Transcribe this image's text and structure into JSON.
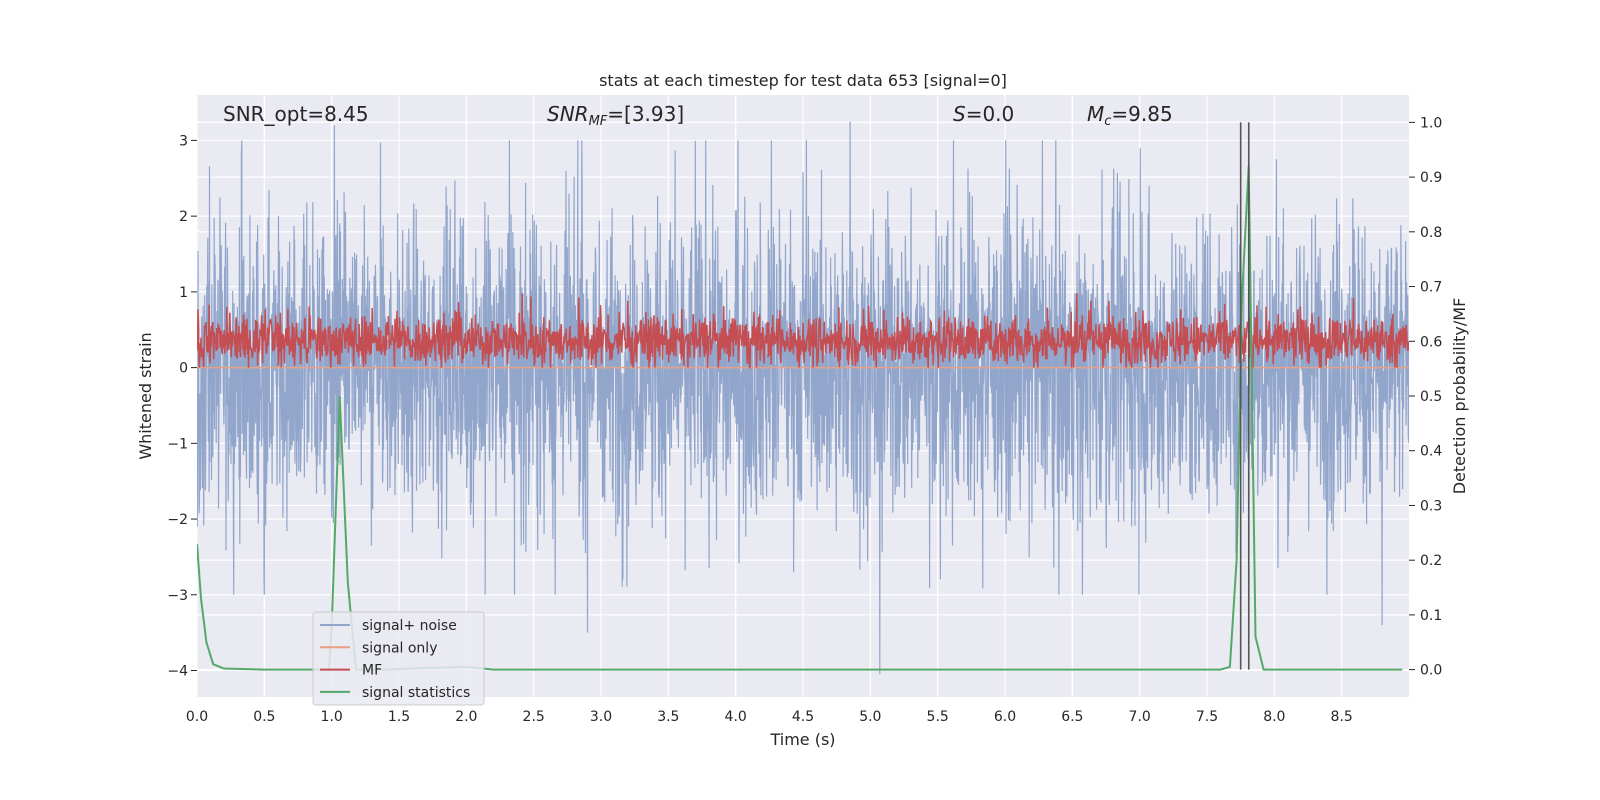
{
  "chart_data": {
    "type": "line",
    "title": "stats at each timestep for test data 653 [signal=0]",
    "xlabel": "Time (s)",
    "ylabel": "Whitened strain",
    "ylabel_right": "Detection probability/MF",
    "xlim": [
      0.0,
      9.0
    ],
    "ylim": [
      -4.35,
      3.6
    ],
    "ylim_right": [
      -0.05,
      1.05
    ],
    "x_ticks": [
      "0.0",
      "0.5",
      "1.0",
      "1.5",
      "2.0",
      "2.5",
      "3.0",
      "3.5",
      "4.0",
      "4.5",
      "5.0",
      "5.5",
      "6.0",
      "6.5",
      "7.0",
      "7.5",
      "8.0",
      "8.5"
    ],
    "y_ticks": [
      "3",
      "2",
      "1",
      "0",
      "−1",
      "−2",
      "−3",
      "−4"
    ],
    "y_ticks_right": [
      "1.0",
      "0.9",
      "0.8",
      "0.7",
      "0.6",
      "0.5",
      "0.4",
      "0.3",
      "0.2",
      "0.1",
      "0.0"
    ],
    "annotations": {
      "snr_opt": "SNR_opt=8.45",
      "snr_mf_base": "SNR",
      "snr_mf_sub": "MF",
      "snr_mf_value": "=[3.93]",
      "s_symbol": "S",
      "s_value": "=0.0",
      "mc_symbol": "M",
      "mc_sub": "c",
      "mc_value": "=9.85"
    },
    "series": [
      {
        "name": "signal+ noise",
        "color": "#92a6cc",
        "kind": "noise",
        "range": [
          -2.0,
          2.0
        ],
        "peaks": [
          {
            "x": 1.02,
            "y": 3.2
          },
          {
            "x": 2.9,
            "y": -3.5
          },
          {
            "x": 4.85,
            "y": 3.25
          },
          {
            "x": 5.07,
            "y": -4.05
          },
          {
            "x": 8.8,
            "y": -3.4
          }
        ]
      },
      {
        "name": "signal only",
        "color": "#e8a183",
        "kind": "flat",
        "y": 0.0
      },
      {
        "name": "MF",
        "color": "#c44e52",
        "kind": "mf",
        "range": [
          0.0,
          0.98
        ]
      },
      {
        "name": "signal statistics",
        "color": "#55a868",
        "kind": "stat",
        "axis": "right",
        "points": [
          [
            0.0,
            0.23
          ],
          [
            0.03,
            0.13
          ],
          [
            0.07,
            0.05
          ],
          [
            0.12,
            0.01
          ],
          [
            0.2,
            0.002
          ],
          [
            0.5,
            0.0
          ],
          [
            0.98,
            0.0
          ],
          [
            1.0,
            0.08
          ],
          [
            1.06,
            0.5
          ],
          [
            1.12,
            0.16
          ],
          [
            1.18,
            0.0
          ],
          [
            1.4,
            0.0
          ],
          [
            1.7,
            0.003
          ],
          [
            2.0,
            0.005
          ],
          [
            2.2,
            0.0
          ],
          [
            7.6,
            0.0
          ],
          [
            7.67,
            0.005
          ],
          [
            7.72,
            0.2
          ],
          [
            7.76,
            0.68
          ],
          [
            7.81,
            0.92
          ],
          [
            7.86,
            0.06
          ],
          [
            7.92,
            0.0
          ],
          [
            8.95,
            0.0
          ]
        ]
      }
    ],
    "vertical_lines": [
      7.75,
      7.81
    ],
    "legend_position": "lower-left"
  }
}
